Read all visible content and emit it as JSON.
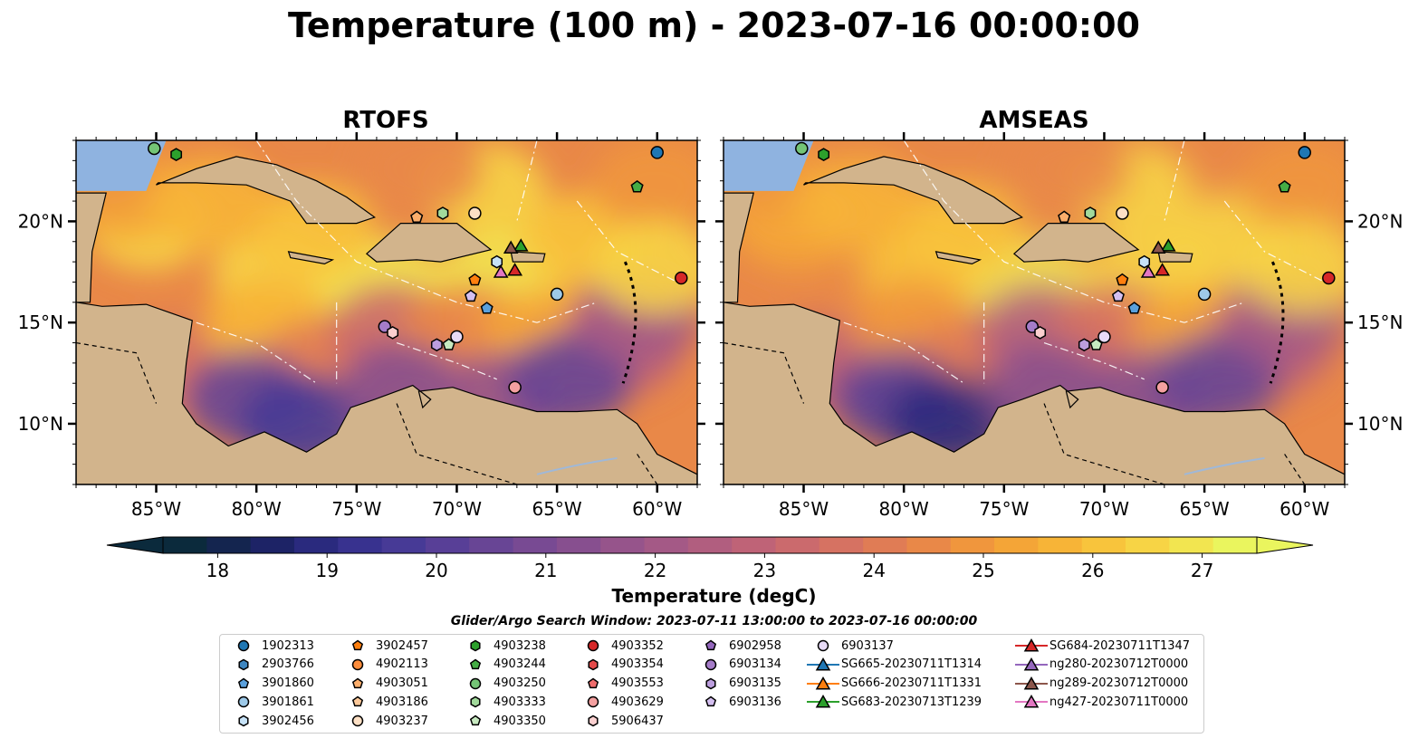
{
  "title": "Temperature (100 m) - 2023-07-16 00:00:00",
  "panels": [
    {
      "title": "RTOFS"
    },
    {
      "title": "AMSEAS"
    }
  ],
  "colorbar": {
    "label": "Temperature (degC)",
    "ticks": [
      "18",
      "19",
      "20",
      "21",
      "22",
      "23",
      "24",
      "25",
      "26",
      "27"
    ],
    "min": 17.5,
    "max": 27.5,
    "extend": "both",
    "colors": [
      "#0b2a3c",
      "#14254f",
      "#1d2366",
      "#2a2a7e",
      "#38328f",
      "#473a96",
      "#583f97",
      "#684595",
      "#784a93",
      "#874f8f",
      "#96548b",
      "#a45986",
      "#b15e7f",
      "#bf6377",
      "#cb6a6d",
      "#d67262",
      "#e07c55",
      "#e98848",
      "#f0963d",
      "#f4a537",
      "#f7b437",
      "#f8c43c",
      "#f7d445",
      "#f2e550",
      "#eaf55e"
    ]
  },
  "search_window": "Glider/Argo Search Window: 2023-07-11 13:00:00 to 2023-07-16 00:00:00",
  "chart_data": {
    "type": "scatter",
    "x_axis": {
      "label": "",
      "range": [
        -89,
        -58
      ],
      "ticks": [
        "85°W",
        "80°W",
        "75°W",
        "70°W",
        "65°W",
        "60°W"
      ],
      "tick_values": [
        -85,
        -80,
        -75,
        -70,
        -65,
        -60
      ]
    },
    "y_axis": {
      "label": "",
      "range": [
        7,
        24
      ],
      "ticks": [
        "10°N",
        "15°N",
        "20°N"
      ],
      "tick_values": [
        10,
        15,
        20
      ]
    },
    "legend_placement": "bottom",
    "series": [
      {
        "name": "1902313",
        "marker": "circle",
        "color": "#1f77b4",
        "lon": -60.0,
        "lat": 23.4
      },
      {
        "name": "2903766",
        "marker": "hexagon",
        "color": "#3e86c0",
        "lon": null,
        "lat": null
      },
      {
        "name": "3901860",
        "marker": "pentagon",
        "color": "#5aa0dc",
        "lon": -68.5,
        "lat": 15.7
      },
      {
        "name": "3901861",
        "marker": "circle",
        "color": "#9ecae9",
        "lon": -65.0,
        "lat": 16.4
      },
      {
        "name": "3902456",
        "marker": "hexagon",
        "color": "#c6e2f7",
        "lon": -68.0,
        "lat": 18.0
      },
      {
        "name": "3902457",
        "marker": "pentagon",
        "color": "#ff7f0e",
        "lon": -69.1,
        "lat": 17.1
      },
      {
        "name": "4902113",
        "marker": "circle",
        "color": "#fd8d3c",
        "lon": null,
        "lat": null
      },
      {
        "name": "4903051",
        "marker": "pentagon",
        "color": "#fdae6b",
        "lon": -72.0,
        "lat": 20.2
      },
      {
        "name": "4903186",
        "marker": "pentagon",
        "color": "#fdc99a",
        "lon": null,
        "lat": null
      },
      {
        "name": "4903237",
        "marker": "circle",
        "color": "#fde0c5",
        "lon": -69.1,
        "lat": 20.4
      },
      {
        "name": "4903238",
        "marker": "hexagon",
        "color": "#2ca02c",
        "lon": -84.0,
        "lat": 23.3
      },
      {
        "name": "4903244",
        "marker": "pentagon",
        "color": "#45ad45",
        "lon": -61.0,
        "lat": 21.7
      },
      {
        "name": "4903250",
        "marker": "circle",
        "color": "#74c476",
        "lon": -85.1,
        "lat": 23.6
      },
      {
        "name": "4903333",
        "marker": "hexagon",
        "color": "#a1d99b",
        "lon": -70.7,
        "lat": 20.4
      },
      {
        "name": "4903350",
        "marker": "pentagon",
        "color": "#c7e9c0",
        "lon": -70.4,
        "lat": 13.9
      },
      {
        "name": "4903352",
        "marker": "circle",
        "color": "#d62728",
        "lon": -58.8,
        "lat": 17.2
      },
      {
        "name": "4903354",
        "marker": "hexagon",
        "color": "#e34a4a",
        "lon": null,
        "lat": null
      },
      {
        "name": "4903553",
        "marker": "pentagon",
        "color": "#ef6c6c",
        "lon": null,
        "lat": null
      },
      {
        "name": "4903629",
        "marker": "circle",
        "color": "#f4a0a0",
        "lon": -67.1,
        "lat": 11.8
      },
      {
        "name": "5906437",
        "marker": "hexagon",
        "color": "#fbd0d0",
        "lon": null,
        "lat": null
      },
      {
        "name": "6902958",
        "marker": "pentagon",
        "color": "#9467bd",
        "lon": null,
        "lat": null
      },
      {
        "name": "6903134",
        "marker": "circle",
        "color": "#a57cc8",
        "lon": -73.6,
        "lat": 14.8
      },
      {
        "name": "6903135",
        "marker": "hexagon",
        "color": "#bc9ede",
        "lon": -71.0,
        "lat": 13.9
      },
      {
        "name": "6903136",
        "marker": "pentagon",
        "color": "#d4bff0",
        "lon": -69.3,
        "lat": 16.3
      },
      {
        "name": "6903137",
        "marker": "circle",
        "color": "#e8dbf7",
        "lon": -70.0,
        "lat": 14.3
      },
      {
        "name": "SG665-20230711T1314",
        "marker": "triangle",
        "color": "#1f77b4",
        "line": true,
        "lon": null,
        "lat": null
      },
      {
        "name": "SG666-20230711T1331",
        "marker": "triangle",
        "color": "#ff7f0e",
        "line": true,
        "lon": null,
        "lat": null
      },
      {
        "name": "SG683-20230713T1239",
        "marker": "triangle",
        "color": "#2ca02c",
        "line": true,
        "lon": -66.8,
        "lat": 18.8
      },
      {
        "name": "SG684-20230711T1347",
        "marker": "triangle",
        "color": "#d62728",
        "line": true,
        "lon": -67.1,
        "lat": 17.6
      },
      {
        "name": "ng280-20230712T0000",
        "marker": "triangle",
        "color": "#9467bd",
        "line": true,
        "lon": null,
        "lat": null
      },
      {
        "name": "ng289-20230712T0000",
        "marker": "triangle",
        "color": "#8c564b",
        "line": true,
        "lon": -67.3,
        "lat": 18.7
      },
      {
        "name": "ng427-20230711T0000",
        "marker": "triangle",
        "color": "#e377c2",
        "line": true,
        "lon": -67.8,
        "lat": 17.5
      },
      {
        "name": "",
        "marker": "hexagon",
        "color": "#fbd0d0",
        "lon": -73.2,
        "lat": 14.5
      }
    ]
  }
}
